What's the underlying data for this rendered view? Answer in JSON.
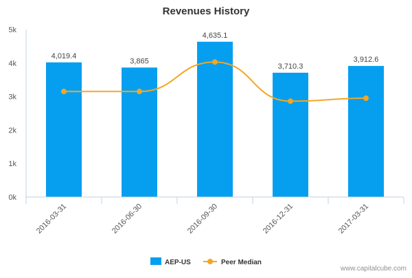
{
  "chart_data": {
    "type": "bar",
    "title": "Revenues History",
    "categories": [
      "2016-03-31",
      "2016-06-30",
      "2016-09-30",
      "2016-12-31",
      "2017-03-31"
    ],
    "series": [
      {
        "name": "AEP-US",
        "kind": "bar",
        "color": "#069ff0",
        "values": [
          4019.4,
          3865,
          4635.1,
          3710.3,
          3912.6
        ],
        "labels": [
          "4,019.4",
          "3,865",
          "4,635.1",
          "3,710.3",
          "3,912.6"
        ]
      },
      {
        "name": "Peer Median",
        "kind": "line",
        "color": "#f5a623",
        "values": [
          3150,
          3150,
          4030,
          2860,
          2950
        ]
      }
    ],
    "ylim": [
      0,
      5000
    ],
    "yticks": [
      0,
      1000,
      2000,
      3000,
      4000,
      5000
    ],
    "ytick_labels": [
      "0k",
      "1k",
      "2k",
      "3k",
      "4k",
      "5k"
    ],
    "grid": false,
    "legend_position": "bottom-center"
  },
  "watermark": "www.capitalcube.com"
}
